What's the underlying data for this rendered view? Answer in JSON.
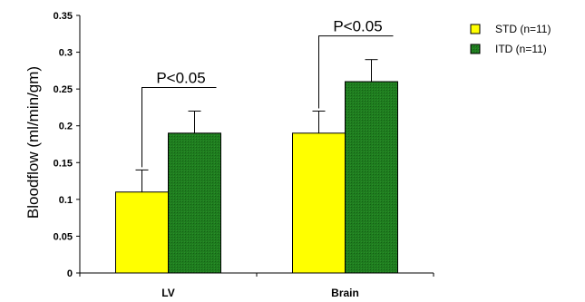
{
  "chart_data": {
    "type": "bar",
    "title": "",
    "xlabel": "",
    "ylabel": "Bloodflow (ml/min/gm)",
    "ylim": [
      0,
      0.35
    ],
    "yticks": [
      "0",
      "0.05",
      "0.1",
      "0.15",
      "0.2",
      "0.25",
      "0.3",
      "0.35"
    ],
    "grid": false,
    "legend_position": "top-right",
    "categories": [
      "LV",
      "Brain"
    ],
    "series": [
      {
        "name": "STD (n=11)",
        "color": "#ffff00",
        "values": [
          0.11,
          0.19
        ],
        "errors": [
          0.03,
          0.03
        ]
      },
      {
        "name": "ITD (n=11)",
        "color": "#1a7a1a",
        "values": [
          0.19,
          0.26
        ],
        "errors": [
          0.03,
          0.03
        ]
      }
    ],
    "annotations": [
      {
        "category": "LV",
        "text": "P<0.05"
      },
      {
        "category": "Brain",
        "text": "P<0.05"
      }
    ]
  }
}
